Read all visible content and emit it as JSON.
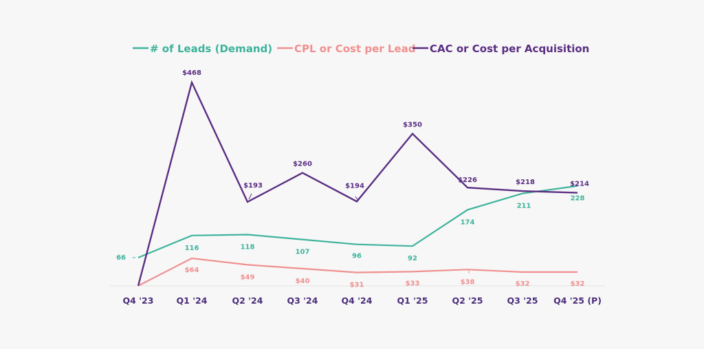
{
  "chart_data": {
    "type": "line",
    "title": "",
    "xlabel": "",
    "ylabel": "",
    "categories": [
      "Q4 '23",
      "Q1 '24",
      "Q2 '24",
      "Q3 '24",
      "Q4 '24",
      "Q1 '25",
      "Q2 '25",
      "Q3 '25",
      "Q4 '25 (P)"
    ],
    "series": [
      {
        "name": "# of Leads (Demand)",
        "color": "#3db39c",
        "values": [
          66,
          116,
          118,
          107,
          96,
          92,
          174,
          211,
          228
        ],
        "labels": [
          "66",
          "116",
          "118",
          "107",
          "96",
          "92",
          "174",
          "211",
          "228"
        ]
      },
      {
        "name": "CPL or Cost per Lead",
        "color": "#f08f8f",
        "values": [
          0,
          64,
          49,
          40,
          31,
          33,
          38,
          32,
          32
        ],
        "labels": [
          "",
          "$64",
          "$49",
          "$40",
          "$31",
          "$33",
          "$38",
          "$32",
          "$32"
        ]
      },
      {
        "name": "CAC or Cost per Acquisition",
        "color": "#5a2d82",
        "values": [
          0,
          468,
          193,
          260,
          194,
          350,
          226,
          218,
          214
        ],
        "labels": [
          "",
          "$468",
          "$193",
          "$260",
          "$194",
          "$350",
          "$226",
          "$218",
          "$214"
        ]
      }
    ],
    "grid": false,
    "legend_position": "top-center"
  }
}
